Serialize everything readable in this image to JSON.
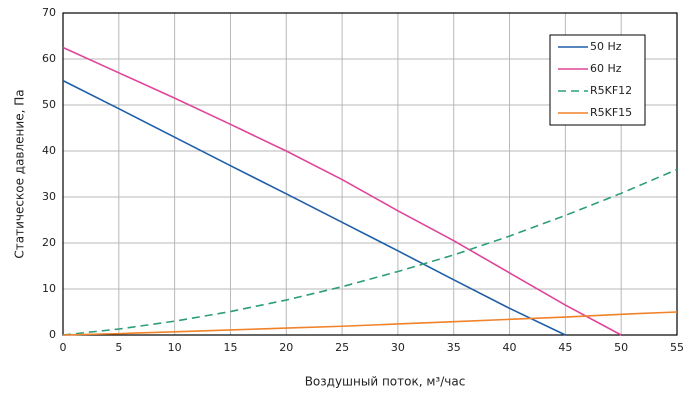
{
  "chart_data": {
    "type": "line",
    "xlabel": "Воздушный поток, м³/час",
    "ylabel": "Статическое давление, Па",
    "x": [
      0,
      5,
      10,
      15,
      20,
      25,
      30,
      35,
      40,
      45,
      50,
      55
    ],
    "series": [
      {
        "name": "50 Hz",
        "color": "#1f5fa8",
        "dashed": false,
        "values": [
          55.3,
          49.2,
          43,
          36.8,
          30.7,
          24.5,
          18.3,
          12,
          5.8,
          0,
          null,
          null
        ]
      },
      {
        "name": "60 Hz",
        "color": "#e0459a",
        "dashed": false,
        "values": [
          62.5,
          57,
          51.5,
          45.8,
          40,
          33.8,
          27,
          20.5,
          13.5,
          6.5,
          0,
          null
        ]
      },
      {
        "name": "R5KF12",
        "color": "#2e9e78",
        "dashed": true,
        "values": [
          0,
          1.3,
          3.0,
          5.1,
          7.6,
          10.5,
          13.8,
          17.4,
          21.5,
          26.0,
          30.8,
          36
        ]
      },
      {
        "name": "R5KF15",
        "color": "#f0822a",
        "dashed": false,
        "values": [
          0,
          0.3,
          0.7,
          1.1,
          1.5,
          1.9,
          2.4,
          2.9,
          3.4,
          3.9,
          4.5,
          5
        ]
      }
    ],
    "xlim": [
      0,
      55
    ],
    "xticks": [
      0,
      5,
      10,
      15,
      20,
      25,
      30,
      35,
      40,
      45,
      50,
      55
    ],
    "ylim": [
      0,
      70
    ],
    "yticks": [
      0,
      10,
      20,
      30,
      40,
      50,
      60,
      70
    ],
    "grid": true,
    "legend": "upper right"
  }
}
